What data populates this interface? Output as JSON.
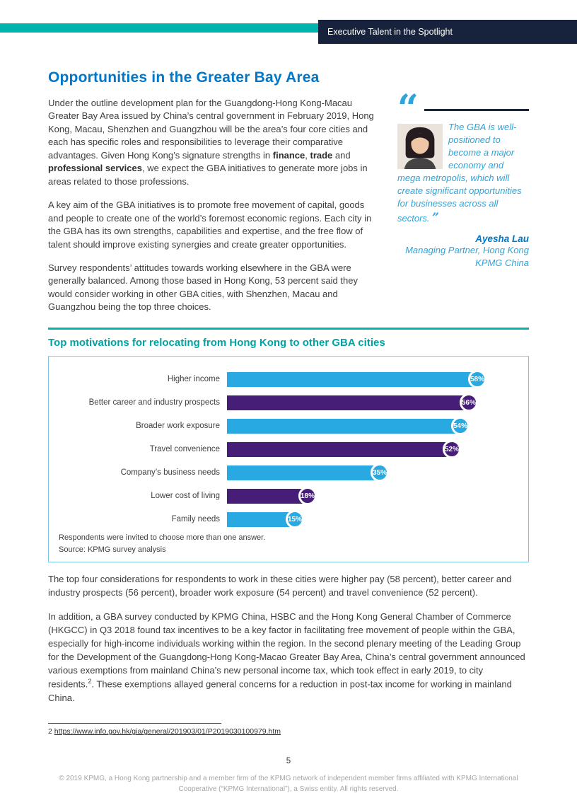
{
  "header": {
    "banner_title": "Executive Talent in the Spotlight"
  },
  "article": {
    "title": "Opportunities in the Greater Bay Area",
    "p1": {
      "pre": "Under the outline development plan for the Guangdong-Hong Kong-Macau Greater Bay Area issued by China’s central government in February 2019, Hong Kong, Macau, Shenzhen and Guangzhou will be the area’s four core cities and each has specific roles and responsibilities to leverage their comparative advantages. Given Hong Kong’s signature strengths in ",
      "bold1": "finance",
      "sep1": ", ",
      "bold2": "trade",
      "sep2": " and ",
      "bold3": "professional services",
      "post": ", we expect the GBA initiatives to generate more jobs in areas related to those professions."
    },
    "p2": "A key aim of the GBA initiatives is to promote free movement of capital, goods and people to create one of the world’s foremost economic regions. Each city in the GBA has its own strengths, capabilities and expertise, and the free flow of talent should improve existing synergies and create greater opportunities.",
    "p3": "Survey respondents’ attitudes towards working elsewhere in the GBA were generally balanced. Among those based in Hong Kong, 53 percent said they would consider working in other GBA cities, with Shenzhen, Macau and Guangzhou being the top three choices.",
    "p4": "The top four considerations for respondents to work in these cities were higher pay (58 percent), better career and industry prospects (56 percent), broader work exposure (54 percent) and travel convenience (52 percent).",
    "p5": {
      "pre": "In addition, a GBA survey conducted by KPMG China, HSBC and the Hong Kong General Chamber of Commerce (HKGCC) in Q3 2018 found tax incentives to be a key factor in facilitating free movement of people within the GBA, especially for high-income individuals working within the region. In the second plenary meeting of the Leading Group for the Development of the Guangdong-Hong Kong-Macao Greater Bay Area, China’s central government announced various exemptions from mainland China’s new personal income tax, which took effect in early 2019, to city residents.",
      "footnote_ref": "2",
      "post": ".  These exemptions allayed general concerns for a reduction in post-tax income for working in mainland China."
    }
  },
  "quote": {
    "open_mark": "“",
    "close_mark": "”",
    "text": "The GBA is well-positioned to become a major economy and mega metropolis, which will create significant opportunities for businesses across all sectors.",
    "author": "Ayesha Lau",
    "role_line1": "Managing Partner, Hong Kong",
    "role_line2": "KPMG China"
  },
  "chart_data": {
    "type": "bar",
    "orientation": "horizontal",
    "title": "Top motivations for relocating from Hong Kong to other GBA cities",
    "categories": [
      "Higher income",
      "Better career and industry prospects",
      "Broader work exposure",
      "Travel convenience",
      "Company’s business needs",
      "Lower cost of living",
      "Family needs"
    ],
    "values": [
      58,
      56,
      54,
      52,
      35,
      18,
      15
    ],
    "unit": "%",
    "xlim": [
      0,
      60
    ],
    "grid": false,
    "legend": "none",
    "bar_colors_alternating": [
      "#29a9e1",
      "#461e78"
    ],
    "notes": [
      "Respondents were invited to choose more than one answer.",
      "Source: KPMG survey analysis"
    ]
  },
  "footnote": {
    "number": "2",
    "url": "https://www.info.gov.hk/gia/general/201903/01/P2019030100979.htm"
  },
  "footer": {
    "page_number": "5",
    "copyright": "© 2019 KPMG, a Hong Kong partnership and a member firm of the KPMG network of independent member firms affiliated with KPMG International Cooperative (“KPMG International”), a Swiss entity. All rights reserved."
  }
}
